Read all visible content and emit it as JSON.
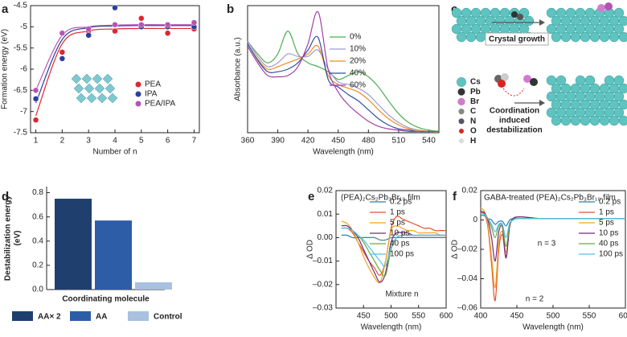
{
  "chart_data": [
    {
      "panel": "a",
      "type": "scatter",
      "xlabel": "Number of n",
      "ylabel": "Formation energy (eV)",
      "x": [
        1,
        2,
        3,
        4,
        5,
        6,
        7
      ],
      "xlim": [
        0.8,
        7.2
      ],
      "xticks": [
        1,
        2,
        3,
        4,
        5,
        6,
        7
      ],
      "ylim": [
        -7.5,
        -4.5
      ],
      "yticks": [
        -7.5,
        -7,
        -6.5,
        -6,
        -5.5,
        -5,
        -4.5
      ],
      "legend": "lower right",
      "series": [
        {
          "name": "PEA",
          "color": "#e0262f",
          "values": [
            -7.2,
            -5.6,
            -5.1,
            -5.1,
            -4.8,
            -5.15,
            -5.05
          ],
          "fit": [
            -7.1,
            -5.4,
            -5.1,
            -5.05,
            -5.04,
            -5.04,
            -5.04
          ]
        },
        {
          "name": "IPA",
          "color": "#2b3f9e",
          "values": [
            -6.7,
            -5.75,
            -5.2,
            -4.55,
            -5.0,
            -5.0,
            -5.0
          ],
          "fit": [
            -6.8,
            -5.3,
            -5.02,
            -4.98,
            -4.97,
            -4.97,
            -4.97
          ]
        },
        {
          "name": "PEA/IPA",
          "color": "#b455b6",
          "values": [
            -6.5,
            -5.15,
            -5.05,
            -4.95,
            -4.95,
            -4.95,
            -4.9
          ],
          "fit": [
            -6.5,
            -5.2,
            -5.0,
            -4.96,
            -4.95,
            -4.95,
            -4.95
          ]
        }
      ]
    },
    {
      "panel": "b",
      "type": "line",
      "xlabel": "Wavelength (nm)",
      "ylabel": "Absorbance (a.u.)",
      "x": [
        360,
        370,
        380,
        390,
        400,
        410,
        420,
        430,
        440,
        450,
        460,
        470,
        480,
        490,
        500,
        510,
        520,
        530,
        540,
        550
      ],
      "xlim": [
        360,
        550
      ],
      "xticks": [
        360,
        390,
        420,
        450,
        480,
        510,
        540
      ],
      "ylim": [
        0,
        1
      ],
      "legend": "upper right",
      "series": [
        {
          "name": "0%",
          "color": "#4caf50",
          "values": [
            0.72,
            0.62,
            0.55,
            0.62,
            0.8,
            0.62,
            0.55,
            0.52,
            0.48,
            0.42,
            0.45,
            0.48,
            0.44,
            0.36,
            0.25,
            0.15,
            0.08,
            0.04,
            0.02,
            0.01
          ]
        },
        {
          "name": "10%",
          "color": "#9e9ad6",
          "values": [
            0.72,
            0.6,
            0.52,
            0.55,
            0.62,
            0.6,
            0.6,
            0.65,
            0.5,
            0.4,
            0.38,
            0.35,
            0.3,
            0.22,
            0.14,
            0.08,
            0.04,
            0.02,
            0.01,
            0.01
          ]
        },
        {
          "name": "20%",
          "color": "#f08c1e",
          "values": [
            0.7,
            0.58,
            0.5,
            0.52,
            0.55,
            0.58,
            0.62,
            0.68,
            0.45,
            0.38,
            0.35,
            0.32,
            0.26,
            0.18,
            0.11,
            0.06,
            0.03,
            0.02,
            0.01,
            0.01
          ]
        },
        {
          "name": "40%",
          "color": "#2d4fa0",
          "values": [
            0.7,
            0.57,
            0.48,
            0.48,
            0.5,
            0.55,
            0.65,
            0.75,
            0.42,
            0.36,
            0.3,
            0.25,
            0.18,
            0.11,
            0.06,
            0.03,
            0.02,
            0.01,
            0.01,
            0.01
          ]
        },
        {
          "name": "60%",
          "color": "#a43fa8",
          "values": [
            0.68,
            0.55,
            0.45,
            0.44,
            0.45,
            0.52,
            0.7,
            0.95,
            0.5,
            0.32,
            0.22,
            0.15,
            0.09,
            0.05,
            0.03,
            0.02,
            0.01,
            0.01,
            0.01,
            0.01
          ]
        }
      ]
    },
    {
      "panel": "d",
      "type": "bar",
      "xlabel": "Coordinating molecule",
      "ylabel": [
        "Destabilization energy",
        "(eV)"
      ],
      "categories": [
        "AA× 2",
        "AA",
        "Control"
      ],
      "values": [
        0.75,
        0.57,
        0.06
      ],
      "colors": [
        "#1f3f6e",
        "#2e5da8",
        "#a9c0e0"
      ],
      "ylim": [
        0,
        0.85
      ],
      "yticks": [
        {
          "value": 0,
          "label": "0.0"
        },
        {
          "value": 0.2,
          "label": "0.2"
        },
        {
          "value": 0.4,
          "label": "0.4"
        },
        {
          "value": 0.6,
          "label": "0.6"
        },
        {
          "value": 0.8,
          "label": "0.8"
        }
      ]
    },
    {
      "panel": "e",
      "type": "line",
      "xlabel": "Wavelength (nm)",
      "ylabel": "Δ OD",
      "legend": "upper right",
      "annotations": [
        "(PEA)₂Cs₂Pb₃Br₁₀ film",
        "Mixture n"
      ],
      "x": [
        410,
        420,
        430,
        440,
        450,
        460,
        470,
        480,
        490,
        500,
        510,
        520,
        530,
        540,
        550,
        560,
        570,
        580,
        590,
        600
      ],
      "xlim": [
        400,
        600
      ],
      "xticks": [
        450,
        500,
        550,
        600
      ],
      "ylim": [
        -0.03,
        0.02
      ],
      "yticks": [
        {
          "value": -0.03,
          "label": "–0.03"
        },
        {
          "value": -0.02,
          "label": "–0.02"
        },
        {
          "value": -0.01,
          "label": "–0.01"
        },
        {
          "value": 0,
          "label": "0.00"
        },
        {
          "value": 0.01,
          "label": "0.01"
        },
        {
          "value": 0.02,
          "label": "0.02"
        }
      ],
      "series": [
        {
          "name": "0.2 ps",
          "color": "#2a7fb0",
          "values": [
            0.001,
            0.001,
            0,
            0,
            0,
            0,
            0,
            -0.001,
            -0.001,
            0,
            0,
            0,
            0,
            0,
            0,
            0,
            0,
            0,
            0,
            0
          ]
        },
        {
          "name": "1 ps",
          "color": "#e4512b",
          "values": [
            0.004,
            0.004,
            0.002,
            -0.002,
            -0.006,
            -0.01,
            -0.013,
            -0.016,
            -0.01,
            0.004,
            0.009,
            0.008,
            0.007,
            0.006,
            0.005,
            0.004,
            0.004,
            0.003,
            0.003,
            0.003
          ]
        },
        {
          "name": "5 ps",
          "color": "#f2a31f",
          "values": [
            0.007,
            0.006,
            0.003,
            -0.002,
            -0.008,
            -0.013,
            -0.017,
            -0.019,
            -0.01,
            0.003,
            0.005,
            0.004,
            0.003,
            0.003,
            0.002,
            0.002,
            0.002,
            0.002,
            0.001,
            0.001
          ]
        },
        {
          "name": "10 ps",
          "color": "#6f2a8a",
          "values": [
            0.005,
            0.005,
            0.003,
            0,
            -0.005,
            -0.01,
            -0.015,
            -0.019,
            -0.015,
            -0.002,
            0.002,
            0.002,
            0.002,
            0.001,
            0.001,
            0.001,
            0.001,
            0.001,
            0.001,
            0.001
          ]
        },
        {
          "name": "40 ps",
          "color": "#6aaa3a",
          "values": [
            0.004,
            0.004,
            0.003,
            0.001,
            -0.002,
            -0.006,
            -0.01,
            -0.014,
            -0.016,
            -0.005,
            0,
            0.001,
            0.001,
            0.001,
            0.001,
            0.001,
            0.001,
            0.001,
            0.001,
            0.001
          ]
        },
        {
          "name": "100 ps",
          "color": "#4fc3e8",
          "values": [
            0.004,
            0.004,
            0.003,
            0.001,
            -0.001,
            -0.004,
            -0.007,
            -0.01,
            -0.012,
            -0.004,
            0,
            0.001,
            0.001,
            0.001,
            0.001,
            0.001,
            0.001,
            0.001,
            0.001,
            0.001
          ]
        }
      ]
    },
    {
      "panel": "f",
      "type": "line",
      "xlabel": "Wavelength (nm)",
      "ylabel": "Δ OD",
      "legend": "upper right",
      "annotations": [
        "GABA-treated (PEA)₂Cs₂Pb₃Br₁₀ film",
        "n = 3",
        "n = 2"
      ],
      "x": [
        400,
        405,
        410,
        415,
        420,
        425,
        430,
        435,
        440,
        445,
        450,
        460,
        480,
        500,
        550,
        600
      ],
      "xlim": [
        400,
        600
      ],
      "xticks": [
        400,
        450,
        500,
        550,
        600
      ],
      "ylim": [
        -0.06,
        0.02
      ],
      "yticks": [
        {
          "value": -0.06,
          "label": "–0.06"
        },
        {
          "value": -0.04,
          "label": "–0.04"
        },
        {
          "value": -0.02,
          "label": "–0.02"
        },
        {
          "value": 0,
          "label": "0"
        },
        {
          "value": 0.02,
          "label": "0.02"
        }
      ],
      "series": [
        {
          "name": "0.2 ps",
          "color": "#2a7fb0",
          "values": [
            0.003,
            0.003,
            0.001,
            0,
            -0.003,
            -0.001,
            -0.001,
            -0.004,
            0,
            0.001,
            0.001,
            0.001,
            0.001,
            0.001,
            0.001,
            0.001
          ]
        },
        {
          "name": "1 ps",
          "color": "#e4512b",
          "values": [
            0.005,
            0.004,
            -0.005,
            -0.03,
            -0.055,
            -0.02,
            -0.01,
            -0.025,
            -0.005,
            0.001,
            0.002,
            0.002,
            0.001,
            0.001,
            0.001,
            0.001
          ]
        },
        {
          "name": "5 ps",
          "color": "#f2a31f",
          "values": [
            0.008,
            0.006,
            -0.003,
            -0.025,
            -0.046,
            -0.015,
            -0.008,
            -0.022,
            -0.004,
            0.001,
            0.002,
            0.002,
            0.001,
            0.001,
            0.001,
            0.001
          ]
        },
        {
          "name": "10 ps",
          "color": "#6f2a8a",
          "values": [
            0.006,
            0.005,
            0,
            -0.012,
            -0.028,
            -0.008,
            -0.005,
            -0.026,
            -0.004,
            0.001,
            0.002,
            0.002,
            0.001,
            0.001,
            0.001,
            0.001
          ]
        },
        {
          "name": "40 ps",
          "color": "#6aaa3a",
          "values": [
            0.004,
            0.004,
            0.001,
            -0.005,
            -0.012,
            -0.004,
            -0.004,
            -0.018,
            -0.003,
            0,
            0.001,
            0.001,
            0.001,
            0.001,
            0.001,
            0.001
          ]
        },
        {
          "name": "100 ps",
          "color": "#4fc3e8",
          "values": [
            0.004,
            0.004,
            0.001,
            -0.003,
            -0.008,
            -0.003,
            -0.003,
            -0.012,
            -0.002,
            0,
            0.001,
            0.001,
            0.001,
            0.001,
            0.001,
            0.001
          ]
        }
      ]
    }
  ],
  "diagram": {
    "panel": "c",
    "crystal_growth": "Crystal growth",
    "destabilization": [
      "Coordination",
      "induced",
      "destabilization"
    ],
    "legend": [
      "Cs",
      "Pb",
      "Br",
      "C",
      "N",
      "O",
      "H"
    ]
  }
}
